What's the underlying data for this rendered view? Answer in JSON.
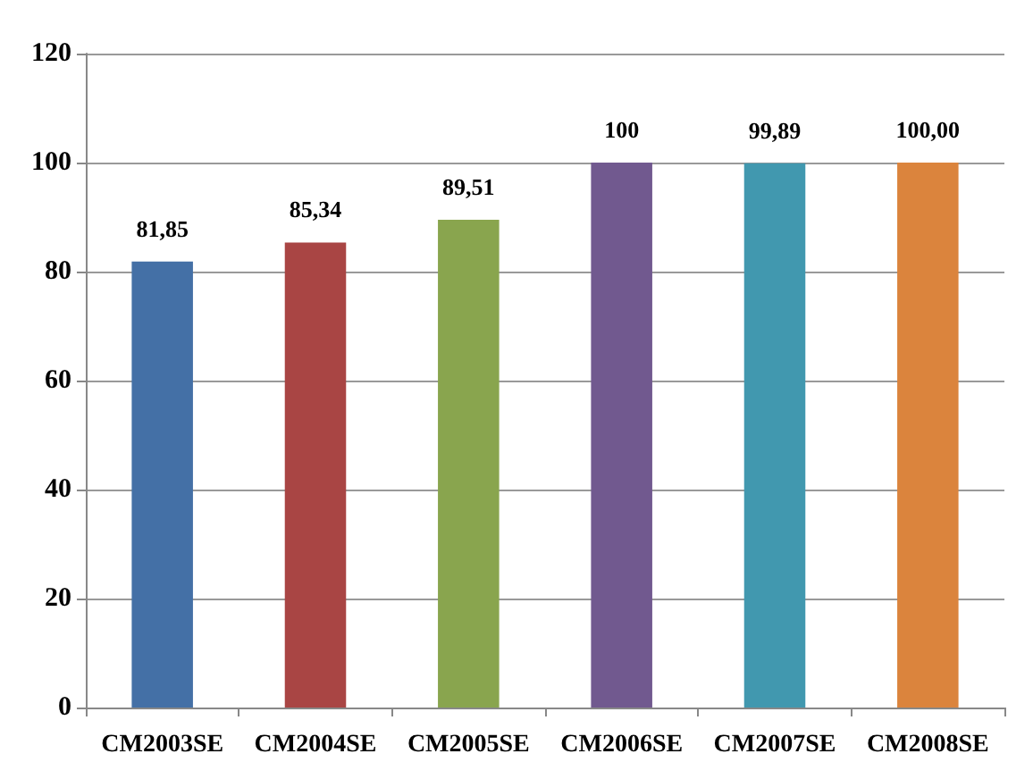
{
  "chart_data": {
    "type": "bar",
    "categories": [
      "CM2003SE",
      "CM2004SE",
      "CM2005SE",
      "CM2006SE",
      "CM2007SE",
      "CM2008SE"
    ],
    "values": [
      81.85,
      85.34,
      89.51,
      100,
      99.89,
      100
    ],
    "colors": [
      "#4470a6",
      "#a94544",
      "#89a54e",
      "#71598f",
      "#4198af",
      "#db843d"
    ],
    "value_labels": [
      "81,85",
      "85,34",
      "89,51",
      "100",
      "99,89",
      "100,00"
    ],
    "ylim": [
      0,
      120
    ],
    "yticks": [
      0,
      20,
      40,
      60,
      80,
      100,
      120
    ],
    "grid": "y"
  }
}
